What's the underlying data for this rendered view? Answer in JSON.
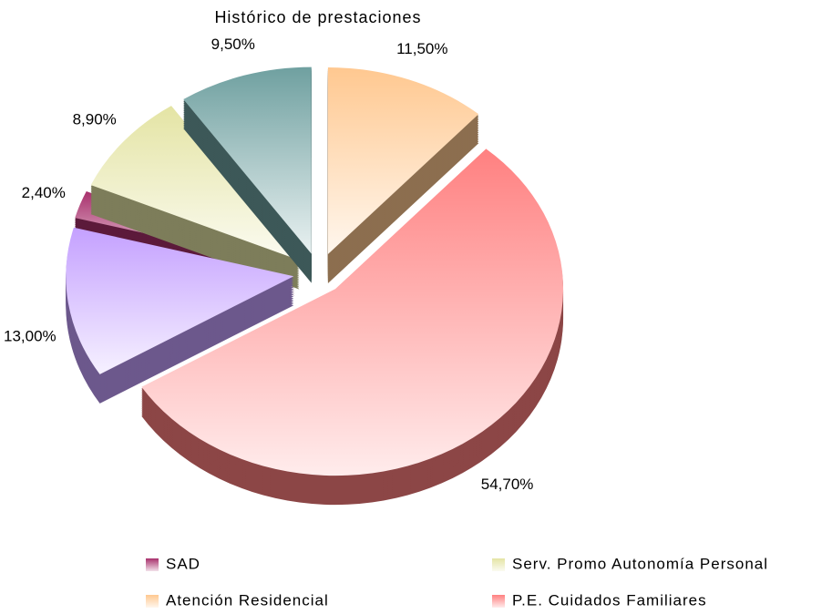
{
  "chart_data": {
    "type": "pie",
    "title": "Histórico de prestaciones",
    "categories": [
      "SAD",
      "Serv. Promo Autonomía Personal",
      null,
      "Atención Residencial",
      "P.E. Cuidados Familiares",
      null
    ],
    "values": [
      2.4,
      8.9,
      9.5,
      11.5,
      54.7,
      13.0
    ],
    "value_labels": [
      "2,40%",
      "8,90%",
      "9,50%",
      "11,50%",
      "54,70%",
      "13,00%"
    ],
    "colors": [
      "#a8306c",
      "#e4e4a4",
      "#6fa0a0",
      "#ffc890",
      "#ff8080",
      "#c4a0ff"
    ],
    "legend": "bottom"
  }
}
